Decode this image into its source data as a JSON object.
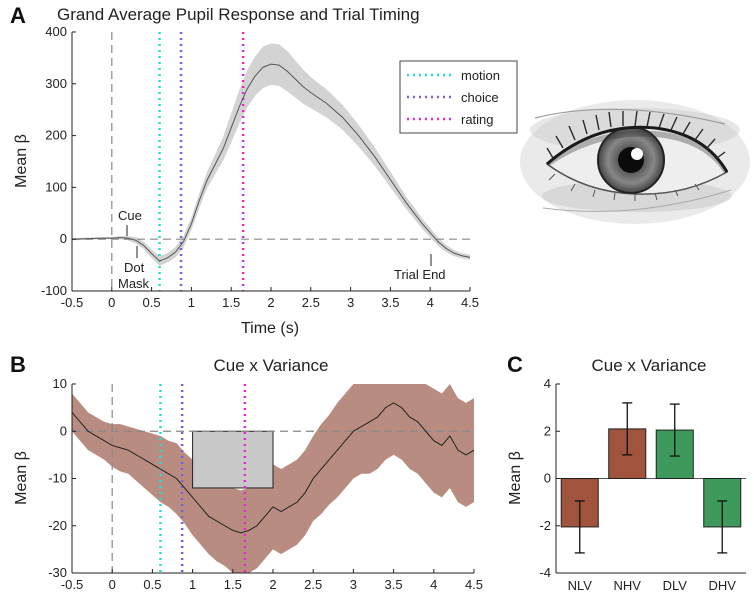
{
  "chart_data": [
    {
      "panel": "A",
      "type": "line",
      "title": "Grand Average Pupil Response and Trial Timing",
      "xlabel": "Time (s)",
      "ylabel": "Mean β",
      "xlim": [
        -0.5,
        4.5
      ],
      "ylim": [
        -100,
        400
      ],
      "xticks": [
        -0.5,
        0,
        0.5,
        1,
        1.5,
        2,
        2.5,
        3,
        3.5,
        4,
        4.5
      ],
      "xtick_labels": [
        "-0.5",
        "0",
        "0.5",
        "1",
        "1.5",
        "2",
        "2.5",
        "3",
        "3.5",
        "4",
        "4.5"
      ],
      "yticks": [
        -100,
        0,
        100,
        200,
        300,
        400
      ],
      "ytick_labels": [
        "-100",
        "0",
        "100",
        "200",
        "300",
        "400"
      ],
      "mean_x": [
        -0.5,
        -0.3,
        -0.1,
        0,
        0.1,
        0.2,
        0.3,
        0.4,
        0.5,
        0.6,
        0.7,
        0.8,
        0.9,
        1.0,
        1.1,
        1.2,
        1.3,
        1.4,
        1.5,
        1.6,
        1.7,
        1.8,
        1.9,
        2.0,
        2.1,
        2.2,
        2.3,
        2.4,
        2.5,
        2.7,
        2.9,
        3.1,
        3.3,
        3.5,
        3.7,
        3.9,
        4.1,
        4.2,
        4.3,
        4.4,
        4.5
      ],
      "mean_y": [
        0,
        1,
        2,
        2,
        3,
        2,
        -2,
        -12,
        -28,
        -42,
        -36,
        -25,
        -5,
        30,
        75,
        115,
        145,
        175,
        215,
        255,
        290,
        315,
        332,
        338,
        336,
        325,
        310,
        295,
        283,
        262,
        235,
        200,
        160,
        115,
        70,
        30,
        -5,
        -18,
        -27,
        -32,
        -35
      ],
      "band_halfwidth": [
        2,
        2,
        2,
        2,
        3,
        4,
        6,
        7,
        8,
        9,
        9,
        10,
        11,
        12,
        14,
        16,
        19,
        23,
        28,
        32,
        36,
        38,
        40,
        40,
        40,
        39,
        36,
        33,
        30,
        27,
        24,
        21,
        18,
        15,
        12,
        10,
        8,
        7,
        6,
        5,
        5
      ],
      "vlines": [
        {
          "name": "motion",
          "x": 0.6,
          "color": "#27dbd6"
        },
        {
          "name": "choice",
          "x": 0.87,
          "color": "#7a5fd8"
        },
        {
          "name": "rating",
          "x": 1.65,
          "color": "#e32ad1"
        }
      ],
      "zero_vline_x": 0,
      "annotations": {
        "cue": "Cue",
        "dot": "Dot",
        "mask": "Mask",
        "trial_end": "Trial End"
      },
      "legend": [
        "motion",
        "choice",
        "rating"
      ],
      "legend_position": "top-right"
    },
    {
      "panel": "B",
      "type": "line",
      "title": "Cue x Variance",
      "xlabel": "",
      "ylabel": "Mean β",
      "xlim": [
        -0.5,
        4.5
      ],
      "ylim": [
        -30,
        10
      ],
      "xticks": [
        -0.5,
        0,
        0.5,
        1,
        1.5,
        2,
        2.5,
        3,
        3.5,
        4,
        4.5
      ],
      "xtick_labels": [
        "-0.5",
        "0",
        "0.5",
        "1",
        "1.5",
        "2",
        "2.5",
        "3",
        "3.5",
        "4",
        "4.5"
      ],
      "yticks": [
        -30,
        -20,
        -10,
        0,
        10
      ],
      "ytick_labels": [
        "-30",
        "-20",
        "-10",
        "0",
        "10"
      ],
      "mean_x": [
        -0.5,
        -0.4,
        -0.3,
        -0.2,
        -0.1,
        0,
        0.1,
        0.2,
        0.3,
        0.4,
        0.5,
        0.6,
        0.7,
        0.8,
        0.9,
        1.0,
        1.1,
        1.2,
        1.3,
        1.4,
        1.5,
        1.6,
        1.7,
        1.8,
        1.9,
        2.0,
        2.1,
        2.2,
        2.3,
        2.4,
        2.5,
        2.6,
        2.7,
        2.8,
        2.9,
        3.0,
        3.1,
        3.2,
        3.3,
        3.4,
        3.5,
        3.6,
        3.7,
        3.8,
        3.9,
        4.0,
        4.1,
        4.2,
        4.3,
        4.4,
        4.5
      ],
      "mean_y": [
        4,
        2,
        0,
        -1,
        -2,
        -3,
        -3.5,
        -4,
        -5,
        -6,
        -7,
        -8,
        -9,
        -10,
        -12,
        -14,
        -16,
        -18,
        -19,
        -20,
        -21,
        -21.5,
        -21,
        -20,
        -18,
        -16,
        -17,
        -16,
        -15,
        -13,
        -10,
        -8,
        -6,
        -4,
        -2,
        0,
        1,
        2,
        3,
        5,
        6,
        5,
        3,
        2,
        0,
        -2,
        -3,
        -1,
        -4,
        -5,
        -4
      ],
      "band_halfwidth": [
        4,
        4,
        4,
        4,
        4,
        4.5,
        5,
        5,
        5.5,
        6,
        6.5,
        7,
        7,
        7.5,
        7.5,
        8,
        8,
        8,
        8.5,
        8.5,
        9,
        9,
        9,
        9,
        9,
        9,
        9,
        9,
        9,
        9,
        9,
        9.5,
        9.5,
        10,
        10,
        10,
        10,
        11,
        11,
        11,
        11,
        11,
        11,
        11,
        11,
        11,
        11,
        11,
        11,
        11,
        11
      ],
      "shaded_interval": {
        "x0": 1,
        "x1": 2
      },
      "vlines": [
        {
          "name": "motion",
          "x": 0.6,
          "color": "#27dbd6"
        },
        {
          "name": "choice",
          "x": 0.87,
          "color": "#7a5fd8"
        },
        {
          "name": "rating",
          "x": 1.65,
          "color": "#e32ad1"
        }
      ],
      "zero_vline_x": 0
    },
    {
      "panel": "C",
      "type": "bar",
      "title": "Cue x Variance",
      "xlabel": "",
      "ylabel": "Mean β",
      "ylim": [
        -4,
        4
      ],
      "yticks": [
        -4,
        -2,
        0,
        2,
        4
      ],
      "ytick_labels": [
        "-4",
        "-2",
        "0",
        "2",
        "4"
      ],
      "categories": [
        "NLV",
        "NHV",
        "DLV",
        "DHV"
      ],
      "values": [
        -2.05,
        2.1,
        2.05,
        -2.05
      ],
      "errors": [
        1.1,
        1.1,
        1.1,
        1.1
      ],
      "colors": [
        "#a0533d",
        "#a0533d",
        "#3e9a5c",
        "#3e9a5c"
      ]
    }
  ],
  "colors": {
    "panel_a_band": "#d3d3d3",
    "panel_a_line": "#555555",
    "panel_b_band": "#b88c80",
    "panel_b_line": "#222222",
    "panel_b_interval": "#c8c8c8",
    "zero_line": "#888888"
  },
  "image": {
    "icon": "eye-illustration"
  },
  "panels": {
    "a_letter": "A",
    "b_letter": "B",
    "c_letter": "C"
  }
}
